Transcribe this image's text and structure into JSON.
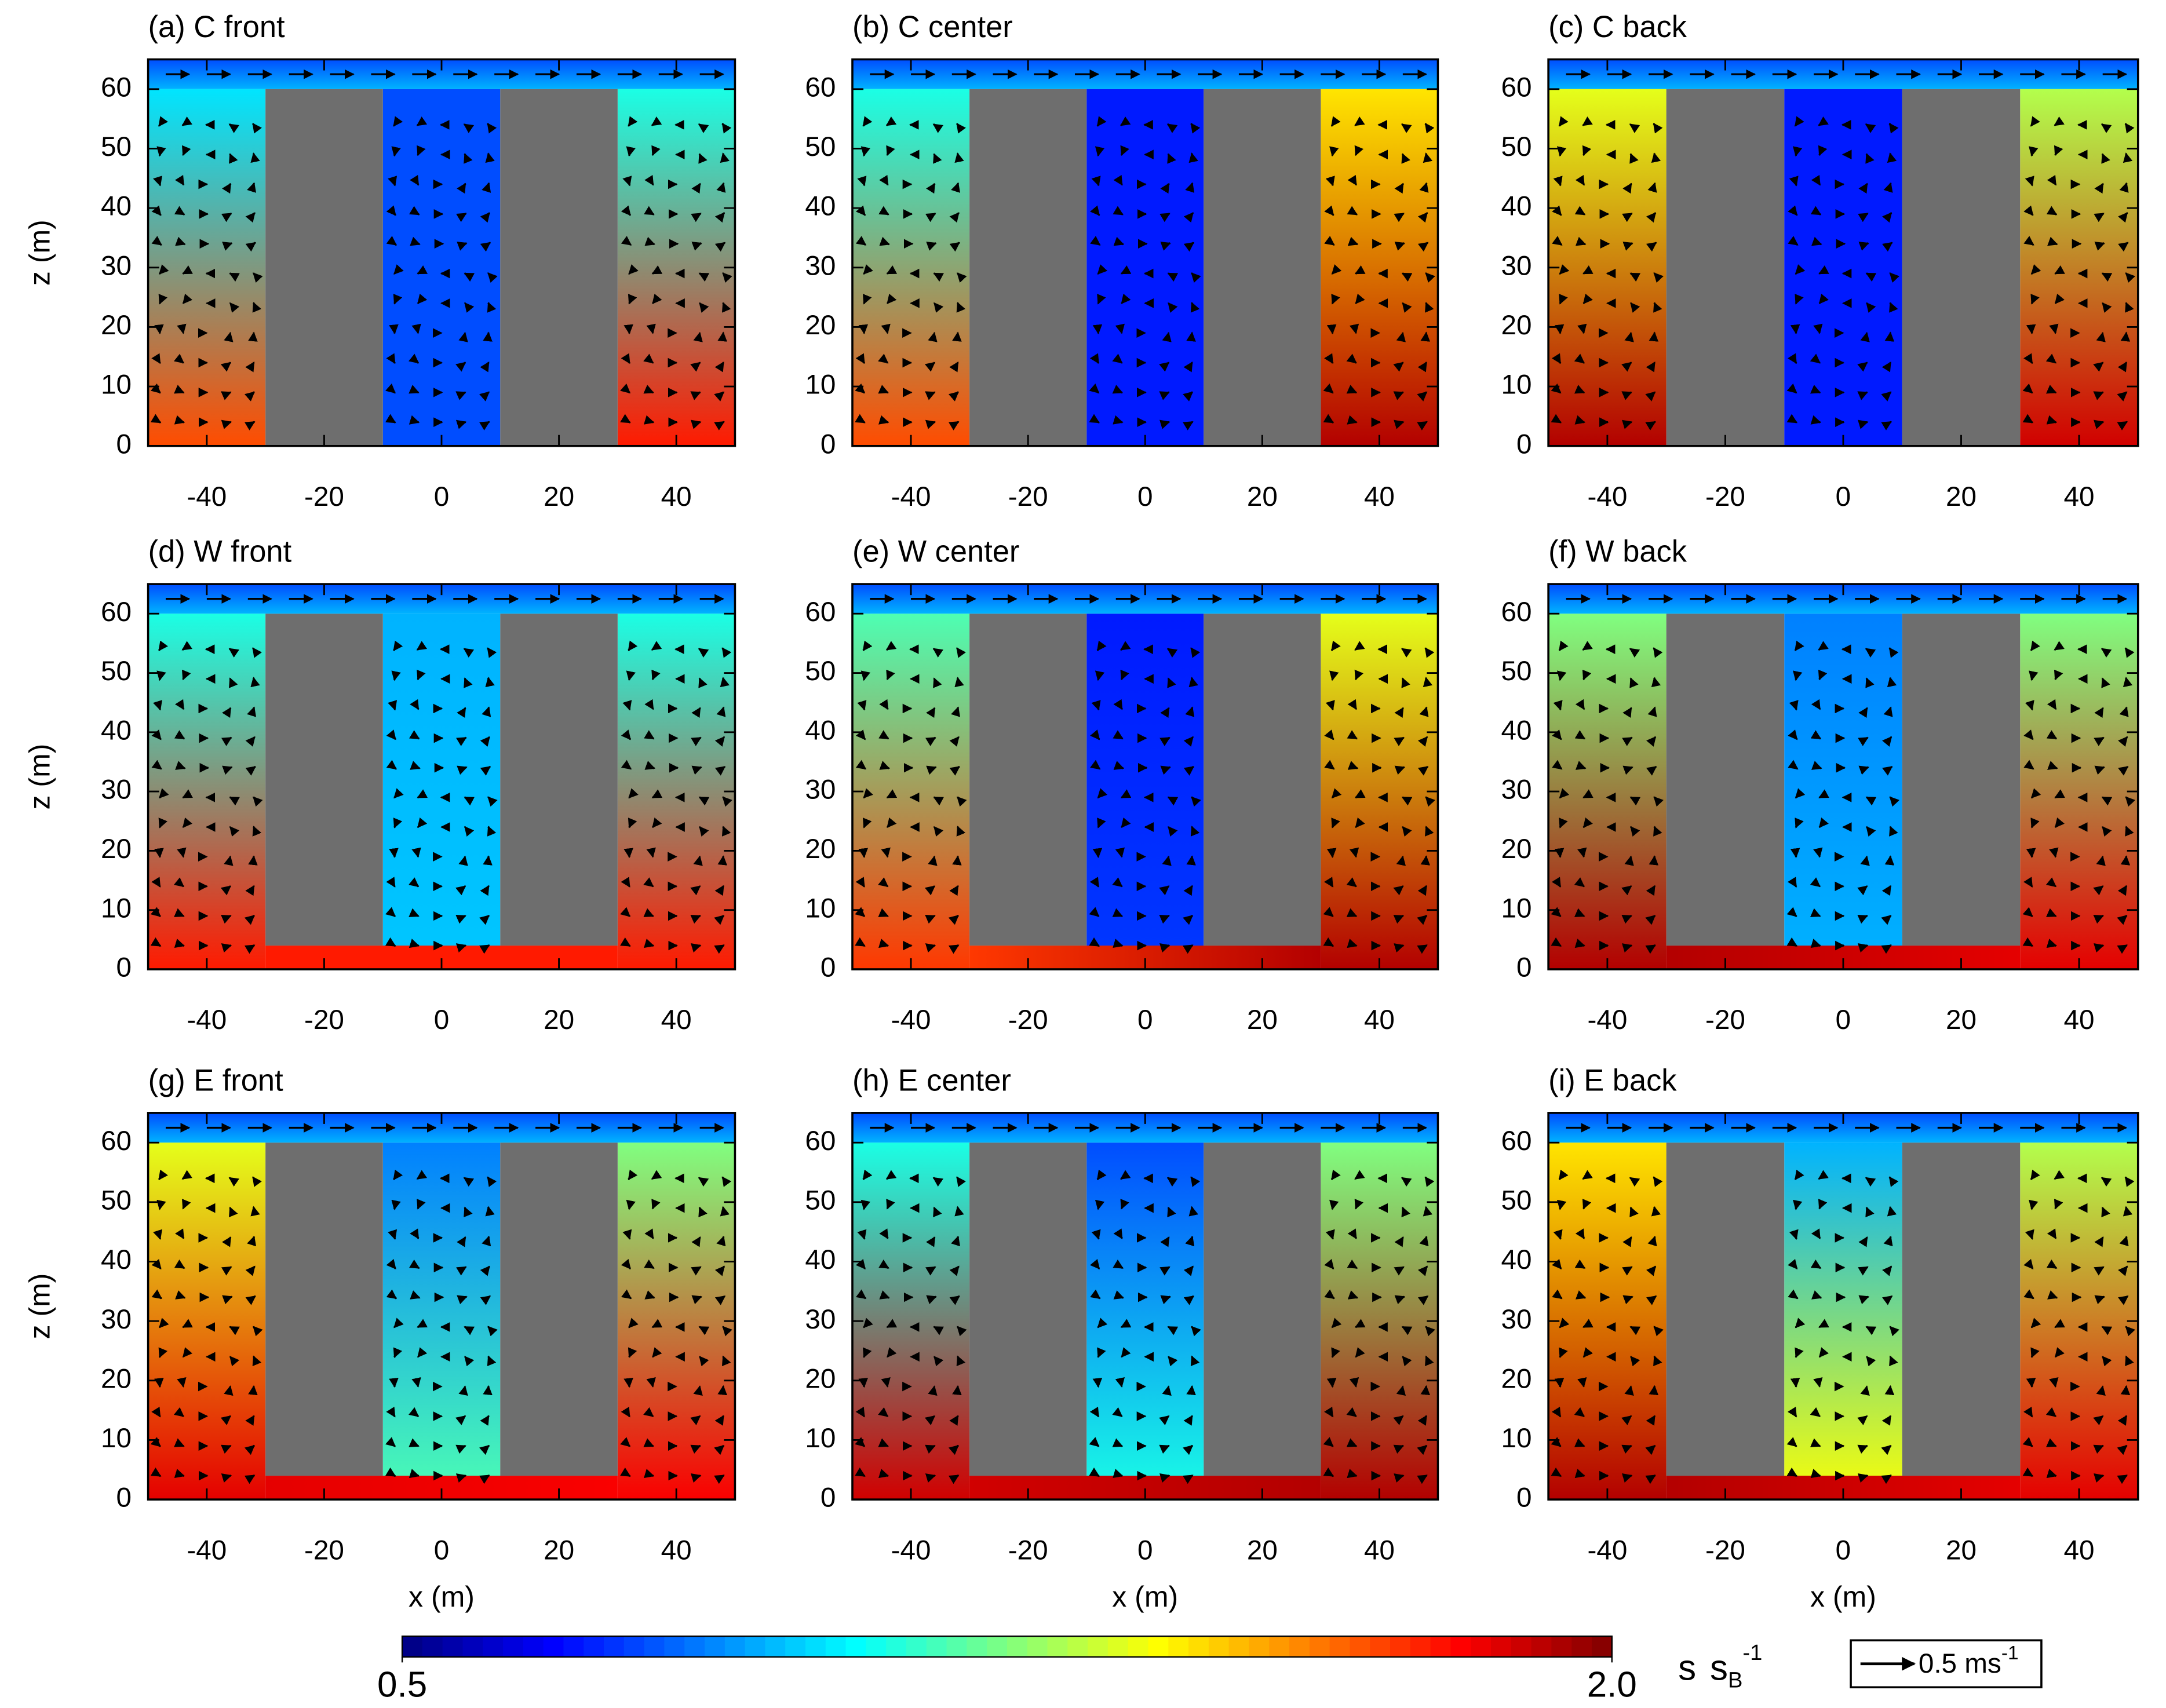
{
  "chart_data": [
    {
      "type": "heatmap",
      "title": "(a) C front",
      "ylabel": "z (m)",
      "xlim": [
        -50,
        50
      ],
      "xticks": [
        -40,
        -20,
        0,
        20,
        40
      ],
      "ylim": [
        0,
        65
      ],
      "yticks": [
        0,
        10,
        20,
        30,
        40,
        50,
        60
      ]
    },
    {
      "type": "heatmap",
      "title": "(b) C center",
      "xlim": [
        -50,
        50
      ],
      "xticks": [
        -40,
        -20,
        0,
        20,
        40
      ],
      "ylim": [
        0,
        65
      ],
      "yticks": [
        0,
        10,
        20,
        30,
        40,
        50,
        60
      ]
    },
    {
      "type": "heatmap",
      "title": "(c) C back",
      "xlim": [
        -50,
        50
      ],
      "xticks": [
        -40,
        -20,
        0,
        20,
        40
      ],
      "ylim": [
        0,
        65
      ],
      "yticks": [
        0,
        10,
        20,
        30,
        40,
        50,
        60
      ]
    },
    {
      "type": "heatmap",
      "title": "(d) W front",
      "ylabel": "z (m)",
      "xlim": [
        -50,
        50
      ],
      "xticks": [
        -40,
        -20,
        0,
        20,
        40
      ],
      "ylim": [
        0,
        65
      ],
      "yticks": [
        0,
        10,
        20,
        30,
        40,
        50,
        60
      ]
    },
    {
      "type": "heatmap",
      "title": "(e) W center",
      "xlim": [
        -50,
        50
      ],
      "xticks": [
        -40,
        -20,
        0,
        20,
        40
      ],
      "ylim": [
        0,
        65
      ],
      "yticks": [
        0,
        10,
        20,
        30,
        40,
        50,
        60
      ]
    },
    {
      "type": "heatmap",
      "title": "(f) W back",
      "xlim": [
        -50,
        50
      ],
      "xticks": [
        -40,
        -20,
        0,
        20,
        40
      ],
      "ylim": [
        0,
        65
      ],
      "yticks": [
        0,
        10,
        20,
        30,
        40,
        50,
        60
      ]
    },
    {
      "type": "heatmap",
      "title": "(g) E front",
      "ylabel": "z (m)",
      "xlabel": "x (m)",
      "xlim": [
        -50,
        50
      ],
      "xticks": [
        -40,
        -20,
        0,
        20,
        40
      ],
      "ylim": [
        0,
        65
      ],
      "yticks": [
        0,
        10,
        20,
        30,
        40,
        50,
        60
      ]
    },
    {
      "type": "heatmap",
      "title": "(h) E center",
      "xlabel": "x (m)",
      "xlim": [
        -50,
        50
      ],
      "xticks": [
        -40,
        -20,
        0,
        20,
        40
      ],
      "ylim": [
        0,
        65
      ],
      "yticks": [
        0,
        10,
        20,
        30,
        40,
        50,
        60
      ]
    },
    {
      "type": "heatmap",
      "title": "(i) E back",
      "xlabel": "x (m)",
      "xlim": [
        -50,
        50
      ],
      "xticks": [
        -40,
        -20,
        0,
        20,
        40
      ],
      "ylim": [
        0,
        65
      ],
      "yticks": [
        0,
        10,
        20,
        30,
        40,
        50,
        60
      ]
    }
  ],
  "colorbar": {
    "clim": [
      0.5,
      2
    ],
    "ticks": [
      0.5,
      {
        "value": 2,
        "label": "2.0"
      }
    ],
    "unit": {
      "first": "s",
      "second": "s",
      "sub": "B",
      "sup": "-1"
    }
  },
  "vector_key": {
    "label": "0.5 ms",
    "sup": "-1"
  }
}
